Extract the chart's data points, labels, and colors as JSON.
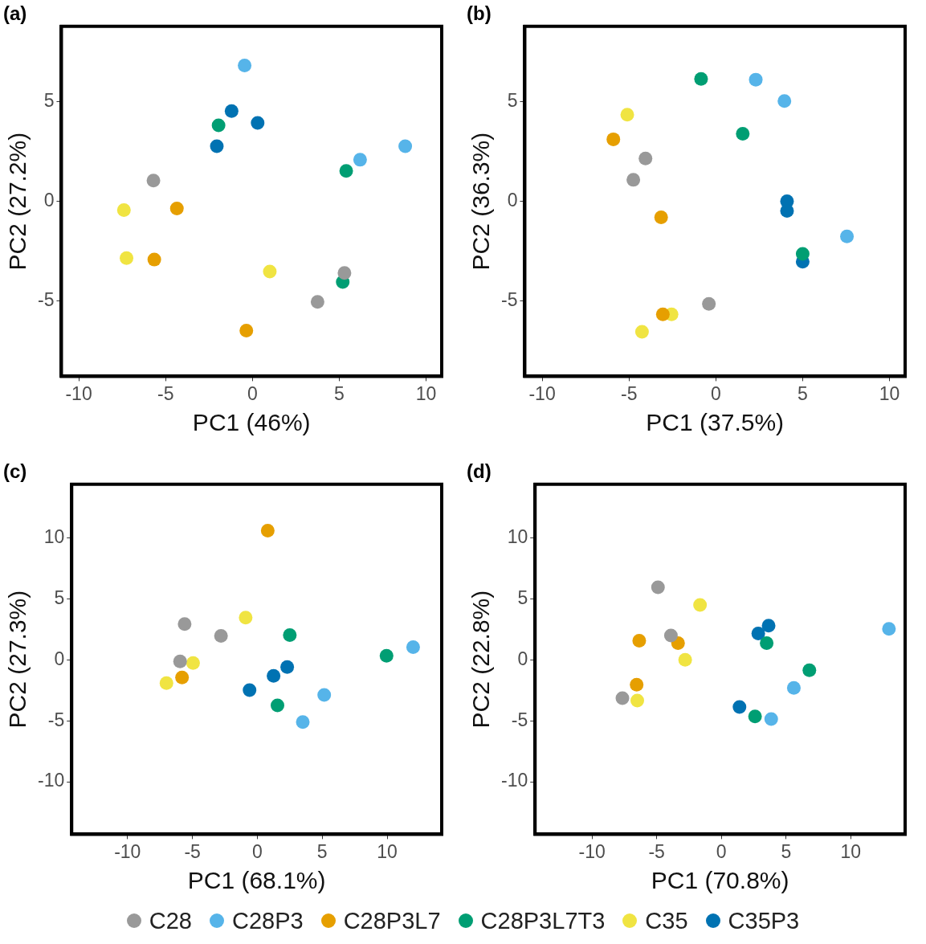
{
  "chart_data": [
    {
      "type": "scatter",
      "title": "(a)",
      "xlabel": "PC1 (46%)",
      "ylabel": "PC2 (27.2%)",
      "xlim": [
        -11,
        10.9
      ],
      "ylim": [
        -8.8,
        8.8
      ],
      "xticks": [
        -10,
        -5,
        0,
        5,
        10
      ],
      "yticks": [
        -5,
        0,
        5
      ],
      "grid": false,
      "marker": "circle",
      "series": [
        {
          "color": "#999999",
          "x": [
            -5.7,
            5.3,
            3.75
          ],
          "values": [
            1.04,
            -3.6,
            -5.06
          ]
        },
        {
          "color": "#56b4e9",
          "x": [
            -0.45,
            6.2,
            8.8
          ],
          "values": [
            6.83,
            2.09,
            2.77
          ]
        },
        {
          "color": "#e69f00",
          "x": [
            -4.35,
            -5.65,
            -0.35
          ],
          "values": [
            -0.36,
            -2.93,
            -6.5
          ]
        },
        {
          "color": "#009e73",
          "x": [
            -1.95,
            5.4,
            5.2
          ],
          "values": [
            3.82,
            1.53,
            -4.06
          ]
        },
        {
          "color": "#f0e442",
          "x": [
            -7.4,
            -7.25,
            1.0
          ],
          "values": [
            -0.44,
            -2.85,
            -3.53
          ]
        },
        {
          "color": "#0072b2",
          "x": [
            -1.2,
            0.3,
            -2.05
          ],
          "values": [
            4.54,
            3.94,
            2.77
          ]
        }
      ]
    },
    {
      "type": "scatter",
      "title": "(b)",
      "xlabel": "PC1 (37.5%)",
      "ylabel": "PC2 (36.3%)",
      "xlim": [
        -11,
        10.9
      ],
      "ylim": [
        -8.8,
        8.8
      ],
      "xticks": [
        -10,
        -5,
        0,
        5,
        10
      ],
      "yticks": [
        -5,
        0,
        5
      ],
      "grid": false,
      "marker": "circle",
      "series": [
        {
          "color": "#999999",
          "x": [
            -4.05,
            -4.75,
            -0.4
          ],
          "values": [
            2.16,
            1.08,
            -5.16
          ]
        },
        {
          "color": "#56b4e9",
          "x": [
            2.3,
            3.95,
            7.55
          ],
          "values": [
            6.12,
            5.04,
            -1.76
          ]
        },
        {
          "color": "#e69f00",
          "x": [
            -5.9,
            -3.15,
            -3.05
          ],
          "values": [
            3.12,
            -0.8,
            -5.68
          ]
        },
        {
          "color": "#009e73",
          "x": [
            -0.85,
            1.55,
            5.0
          ],
          "values": [
            6.16,
            3.4,
            -2.64
          ]
        },
        {
          "color": "#f0e442",
          "x": [
            -5.1,
            -2.55,
            -4.25
          ],
          "values": [
            4.36,
            -5.68,
            -6.56
          ]
        },
        {
          "color": "#0072b2",
          "x": [
            4.1,
            4.1,
            5.0
          ],
          "values": [
            0,
            -0.48,
            -3.04
          ]
        }
      ]
    },
    {
      "type": "scatter",
      "title": "(c)",
      "xlabel": "PC1 (68.1%)",
      "ylabel": "PC2 (27.3%)",
      "xlim": [
        -14.3,
        14.2
      ],
      "ylim": [
        -14.3,
        14.4
      ],
      "xticks": [
        -10,
        -5,
        0,
        5,
        10
      ],
      "yticks": [
        -10,
        -5,
        0,
        5,
        10
      ],
      "grid": false,
      "marker": "circle",
      "series": [
        {
          "color": "#999999",
          "x": [
            -5.6,
            -2.8,
            -5.95
          ],
          "values": [
            2.94,
            1.96,
            -0.13
          ]
        },
        {
          "color": "#56b4e9",
          "x": [
            12.0,
            5.15,
            3.5
          ],
          "values": [
            1.05,
            -2.88,
            -5.1
          ]
        },
        {
          "color": "#e69f00",
          "x": [
            0.8,
            -5.8
          ],
          "values": [
            10.6,
            -1.44
          ]
        },
        {
          "color": "#009e73",
          "x": [
            2.5,
            9.95,
            1.55
          ],
          "values": [
            2.03,
            0.33,
            -3.73
          ]
        },
        {
          "color": "#f0e442",
          "x": [
            -0.9,
            -4.95,
            -7.0
          ],
          "values": [
            3.46,
            -0.26,
            -1.9
          ]
        },
        {
          "color": "#0072b2",
          "x": [
            2.3,
            1.25,
            -0.6
          ],
          "values": [
            -0.59,
            -1.31,
            -2.48
          ]
        }
      ]
    },
    {
      "type": "scatter",
      "title": "(d)",
      "xlabel": "PC1 (70.8%)",
      "ylabel": "PC2 (22.8%)",
      "xlim": [
        -14.4,
        14.2
      ],
      "ylim": [
        -14.3,
        14.4
      ],
      "xticks": [
        -10,
        -5,
        0,
        5,
        10
      ],
      "yticks": [
        -10,
        -5,
        0,
        5,
        10
      ],
      "grid": false,
      "marker": "circle",
      "legend": "bottom",
      "series": [
        {
          "name": "C28",
          "color": "#999999",
          "x": [
            -4.9,
            -3.9,
            -7.65
          ],
          "values": [
            5.95,
            2.0,
            -3.14
          ]
        },
        {
          "name": "C28P3",
          "color": "#56b4e9",
          "x": [
            12.95,
            5.6,
            3.85
          ],
          "values": [
            2.55,
            -2.3,
            -4.85
          ]
        },
        {
          "name": "C28P3L7",
          "color": "#e69f00",
          "x": [
            -6.35,
            -3.35,
            -6.55
          ],
          "values": [
            1.57,
            1.37,
            -2.03
          ]
        },
        {
          "name": "C28P3L7T3",
          "color": "#009e73",
          "x": [
            3.5,
            6.8,
            2.6
          ],
          "values": [
            1.37,
            -0.85,
            -4.64
          ]
        },
        {
          "name": "C35",
          "color": "#f0e442",
          "x": [
            -1.65,
            -2.8,
            -6.5
          ],
          "values": [
            4.5,
            0.0,
            -3.33
          ]
        },
        {
          "name": "C35P3",
          "color": "#0072b2",
          "x": [
            3.65,
            2.85,
            1.4
          ],
          "values": [
            2.81,
            2.16,
            -3.86
          ]
        }
      ]
    }
  ]
}
